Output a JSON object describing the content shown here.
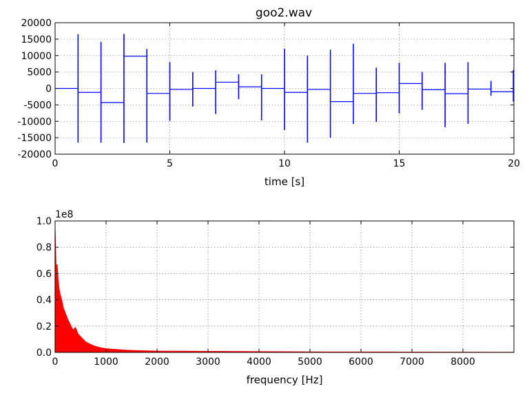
{
  "chart_data": [
    {
      "type": "line",
      "title": "goo2.wav",
      "xlabel": "time [s]",
      "ylabel": "",
      "xlim": [
        0,
        20
      ],
      "ylim": [
        -20000,
        20000
      ],
      "xticks": [
        0,
        5,
        10,
        15,
        20
      ],
      "yticks": [
        20000,
        15000,
        10000,
        5000,
        0,
        -5000,
        -10000,
        -15000,
        -20000
      ],
      "grid": true,
      "color": "#0000ff",
      "series": [
        {
          "levels": [
            {
              "t0": 0,
              "t1": 1,
              "v": 0
            },
            {
              "t0": 1,
              "t1": 2,
              "v": -1200
            },
            {
              "t0": 2,
              "t1": 3,
              "v": -4300
            },
            {
              "t0": 3,
              "t1": 4,
              "v": 9800
            },
            {
              "t0": 4,
              "t1": 5,
              "v": -1500
            },
            {
              "t0": 5,
              "t1": 6,
              "v": -300
            },
            {
              "t0": 6,
              "t1": 7,
              "v": 0
            },
            {
              "t0": 7,
              "t1": 8,
              "v": 1900
            },
            {
              "t0": 8,
              "t1": 9,
              "v": 500
            },
            {
              "t0": 9,
              "t1": 10,
              "v": 0
            },
            {
              "t0": 10,
              "t1": 11,
              "v": -1200
            },
            {
              "t0": 11,
              "t1": 12,
              "v": -300
            },
            {
              "t0": 12,
              "t1": 13,
              "v": -4000
            },
            {
              "t0": 13,
              "t1": 14,
              "v": -1500
            },
            {
              "t0": 14,
              "t1": 15,
              "v": -1300
            },
            {
              "t0": 15,
              "t1": 16,
              "v": 1500
            },
            {
              "t0": 16,
              "t1": 17,
              "v": -400
            },
            {
              "t0": 17,
              "t1": 18,
              "v": -1600
            },
            {
              "t0": 18,
              "t1": 19,
              "v": -200
            },
            {
              "t0": 19,
              "t1": 20,
              "v": -1000
            }
          ],
          "spikes": [
            {
              "t": 1.0,
              "max": 16500,
              "min": -16500
            },
            {
              "t": 2.0,
              "max": 14200,
              "min": -16500
            },
            {
              "t": 3.0,
              "max": 16600,
              "min": -16600
            },
            {
              "t": 4.0,
              "max": 12000,
              "min": -16500
            },
            {
              "t": 5.0,
              "max": 8000,
              "min": -9800
            },
            {
              "t": 6.0,
              "max": 5000,
              "min": -5500
            },
            {
              "t": 7.0,
              "max": 5500,
              "min": -7800
            },
            {
              "t": 8.0,
              "max": 4300,
              "min": -3300
            },
            {
              "t": 9.0,
              "max": 4300,
              "min": -9700
            },
            {
              "t": 10.0,
              "max": 12100,
              "min": -12600
            },
            {
              "t": 11.0,
              "max": 10000,
              "min": -16500
            },
            {
              "t": 12.0,
              "max": 11800,
              "min": -15000
            },
            {
              "t": 13.0,
              "max": 13600,
              "min": -10800
            },
            {
              "t": 14.0,
              "max": 6300,
              "min": -10200
            },
            {
              "t": 15.0,
              "max": 7800,
              "min": -7600
            },
            {
              "t": 16.0,
              "max": 5000,
              "min": -6500
            },
            {
              "t": 17.0,
              "max": 7800,
              "min": -11800
            },
            {
              "t": 18.0,
              "max": 8000,
              "min": -10800
            },
            {
              "t": 19.0,
              "max": 2300,
              "min": -2200
            },
            {
              "t": 20.0,
              "max": 5600,
              "min": -4000
            }
          ]
        }
      ]
    },
    {
      "type": "area",
      "title": "",
      "xlabel": "frequency [Hz]",
      "ylabel": "",
      "scale_label": "1e8",
      "xlim": [
        0,
        9000
      ],
      "ylim": [
        0.0,
        1.0
      ],
      "xticks": [
        0,
        1000,
        2000,
        3000,
        4000,
        5000,
        6000,
        7000,
        8000
      ],
      "yticks": [
        1.0,
        0.8,
        0.6,
        0.4,
        0.2,
        0.0
      ],
      "grid": true,
      "color": "#ff0000",
      "series": [
        {
          "x": [
            0,
            20,
            40,
            60,
            80,
            100,
            130,
            160,
            200,
            250,
            300,
            350,
            400,
            450,
            500,
            600,
            700,
            800,
            900,
            1000,
            1200,
            1400,
            1600,
            1800,
            2000,
            2200,
            2500,
            3000,
            3500,
            4000,
            4500,
            5000,
            5500,
            6000,
            6500,
            7000,
            7500,
            8000,
            8500,
            9000
          ],
          "y": [
            0.93,
            0.65,
            0.67,
            0.55,
            0.48,
            0.44,
            0.4,
            0.34,
            0.3,
            0.25,
            0.21,
            0.17,
            0.19,
            0.14,
            0.12,
            0.08,
            0.06,
            0.045,
            0.035,
            0.028,
            0.022,
            0.017,
            0.014,
            0.012,
            0.01,
            0.009,
            0.009,
            0.008,
            0.007,
            0.006,
            0.005,
            0.004,
            0.0035,
            0.003,
            0.003,
            0.0025,
            0.002,
            0.002,
            0.0015,
            0.0015
          ]
        }
      ]
    }
  ]
}
